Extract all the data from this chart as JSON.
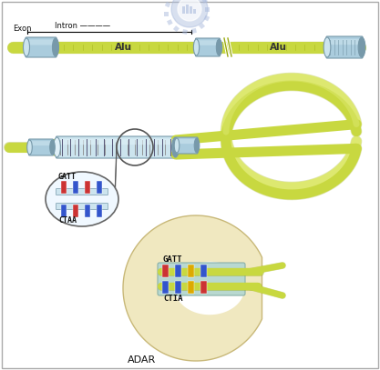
{
  "bg_color": "#ffffff",
  "border_color": "#aaaaaa",
  "rna_green": "#c8d840",
  "rna_green_light": "#dde870",
  "rna_green_dark": "#9aaa10",
  "connector_blue": "#aaccdd",
  "connector_blue_light": "#cce4ee",
  "connector_blue_dark": "#7799aa",
  "base_red": "#cc3333",
  "base_blue": "#3355cc",
  "base_yellow": "#ddaa00",
  "adar_cream": "#f0e8c0",
  "adar_cream_dark": "#c8b878",
  "logo_blue": "#aabbdd",
  "title_top": "GATT",
  "title_bottom": "CTAA",
  "title_bottom2": "CTIA",
  "label_exon": "Exon",
  "label_intron": "Intron",
  "label_alu": "Alu",
  "label_adar": "ADAR",
  "text_color": "#111111"
}
